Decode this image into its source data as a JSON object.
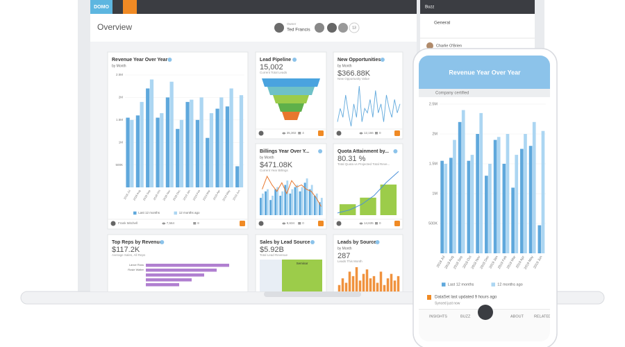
{
  "topbar": {
    "logo": "DOMO"
  },
  "buzz": {
    "title": "Buzz",
    "channel": "General",
    "user": "Charlie O'Brien"
  },
  "header": {
    "title": "Overview",
    "owner_label": "Owner",
    "owner": "Ted Francis",
    "member_count": "13"
  },
  "cards": [
    {
      "title": "Revenue Year Over Year",
      "by": "by Month",
      "chart": {
        "type": "bar",
        "categories": [
          "2018 Jul",
          "2018 Aug",
          "2018 Sep",
          "2018 Oct",
          "2018 Nov",
          "2018 Dec",
          "2019 Jan",
          "2019 Feb",
          "2019 Mar",
          "2019 Apr",
          "2019 May",
          "2019 Jun"
        ],
        "series": [
          {
            "name": "Last 12 months",
            "color": "#5fa8dc",
            "values": [
              1550000,
              1600000,
              2200000,
              1550000,
              2000000,
              1300000,
              1900000,
              1500000,
              1100000,
              1750000,
              1800000,
              470000
            ]
          },
          {
            "name": "12 months ago",
            "color": "#acd6f2",
            "values": [
              1500000,
              1900000,
              2400000,
              1650000,
              2350000,
              1500000,
              1950000,
              2000000,
              1650000,
              2000000,
              2200000,
              2050000
            ]
          }
        ],
        "ylim": [
          0,
          2500000
        ],
        "yticks": [
          {
            "value": 500000,
            "label": "500K"
          },
          {
            "value": 1000000,
            "label": "1M"
          },
          {
            "value": 1500000,
            "label": "1.5M"
          },
          {
            "value": 2000000,
            "label": "2M"
          },
          {
            "value": 2500000,
            "label": "2.5M"
          }
        ]
      },
      "footer": {
        "user": "Frank Mitchell",
        "views": "7,564",
        "comments": "8"
      }
    },
    {
      "title": "Lead Pipeline",
      "value": "15,002",
      "subtitle": "Current Total Leads",
      "footer": {
        "views": "35,302",
        "comments": "4"
      }
    },
    {
      "title": "New Opportunities",
      "by": "by Month",
      "value": "$366.88K",
      "subtitle": "New Opportunity Value",
      "chart": {
        "type": "line",
        "color": "#5fa8dc",
        "values": [
          40,
          55,
          45,
          70,
          50,
          35,
          60,
          45,
          80,
          40,
          55,
          50,
          65,
          45,
          75,
          50,
          60,
          40,
          70,
          55,
          45,
          65,
          50,
          60
        ]
      },
      "footer": {
        "views": "12,166",
        "comments": "0"
      }
    },
    {
      "title": "Billings Year Over Y...",
      "by": "by Month",
      "value": "$471.08K",
      "subtitle": "Current Year Billings",
      "chart": {
        "type": "bar-line",
        "series": [
          {
            "color": "#5fa8dc",
            "values": [
              40,
              55,
              35,
              60,
              45,
              70,
              50,
              65,
              55,
              75,
              60,
              45,
              30
            ]
          },
          {
            "color": "#acd6f2",
            "values": [
              50,
              60,
              45,
              65,
              55,
              80,
              60,
              70,
              65,
              85,
              70,
              50,
              40
            ]
          }
        ],
        "line": {
          "color": "#e8772e",
          "values": [
            60,
            90,
            70,
            55,
            75,
            50,
            80,
            65,
            70,
            60,
            55,
            40,
            20
          ]
        }
      },
      "footer": {
        "views": "9,634",
        "comments": "0"
      }
    },
    {
      "title": "Quota Attainment by...",
      "value": "80.31 %",
      "subtitle": "Total Quota vs Projected Total Reve...",
      "chart": {
        "type": "bar-line",
        "series": [
          {
            "color": "#9ccc4a",
            "values": [
              25,
              40,
              70
            ]
          }
        ],
        "line": {
          "color": "#4a90d9",
          "values": [
            5,
            12,
            25,
            45,
            75,
            100
          ]
        }
      },
      "footer": {
        "views": "14,635",
        "comments": "0"
      }
    },
    {
      "title": "Top Reps by Revenue",
      "value": "$117.2K",
      "subtitle": "Average Sales, All Reps",
      "chart": {
        "type": "hbar",
        "color": "#b07fd0",
        "categories": [
          "Lance Ross",
          "Rosie Walter",
          null,
          null,
          null
        ],
        "values": [
          100,
          85,
          70,
          55,
          40
        ]
      }
    },
    {
      "title": "Sales by Lead Source",
      "value": "$5.92B",
      "subtitle": "Total Lead Revenue",
      "segment": "Seminar"
    },
    {
      "title": "Leads by Source",
      "by": "by Month",
      "value": "287",
      "subtitle": "Leads This Month",
      "chart": {
        "type": "bar",
        "color": "#f0923e",
        "values": [
          30,
          45,
          35,
          60,
          50,
          70,
          40,
          55,
          65,
          45,
          50,
          35,
          60,
          30,
          45,
          55,
          40,
          50
        ]
      }
    }
  ],
  "phone": {
    "certified": "Company certified",
    "updated": "DataSet last updated 9 hours ago",
    "synced": "Synced just now",
    "tabs": [
      "INSIGHTS",
      "BUZZ",
      "ABOUT",
      "RELATED"
    ]
  }
}
